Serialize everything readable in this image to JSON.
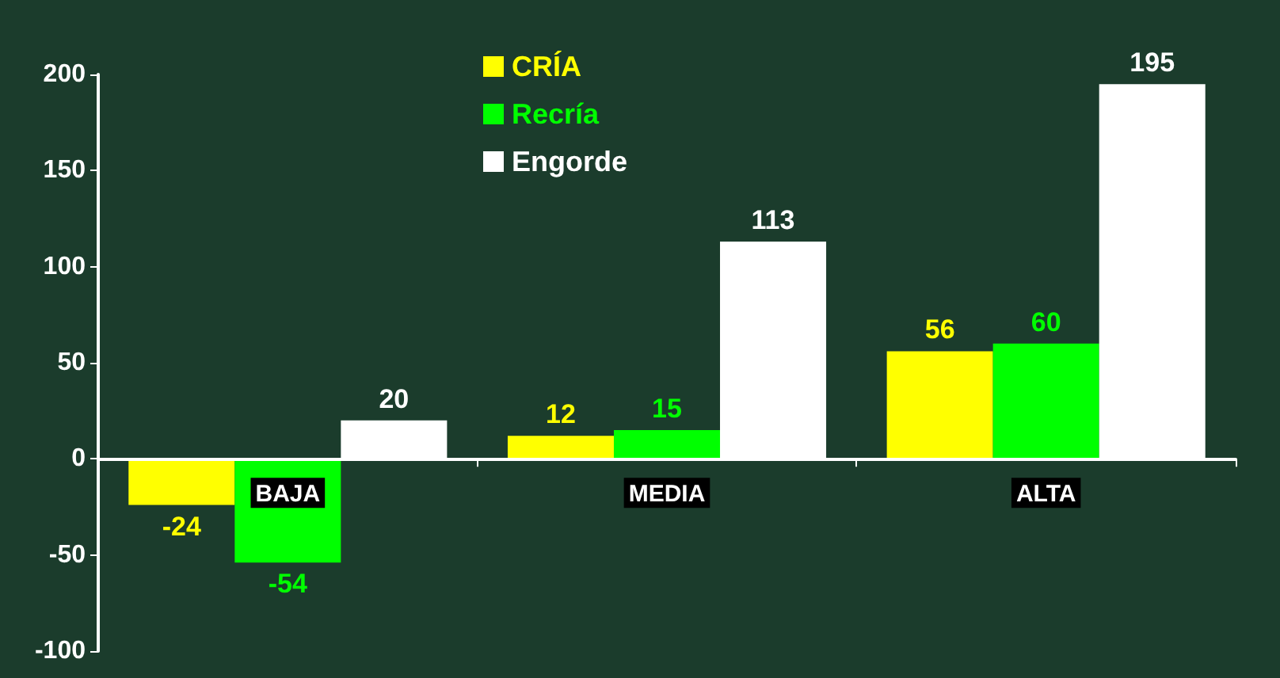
{
  "chart_data": {
    "type": "bar",
    "categories": [
      "BAJA",
      "MEDIA",
      "ALTA"
    ],
    "series": [
      {
        "name": "CRÍA",
        "color": "#ffff00",
        "values": [
          -24,
          12,
          56
        ]
      },
      {
        "name": "Recría",
        "color": "#00ff00",
        "values": [
          -54,
          15,
          60
        ]
      },
      {
        "name": "Engorde",
        "color": "#ffffff",
        "values": [
          20,
          113,
          195
        ]
      }
    ],
    "ylim": [
      -100,
      200
    ],
    "yticks": [
      -100,
      -50,
      0,
      50,
      100,
      150,
      200
    ],
    "legend": "top",
    "data_labels": true
  }
}
